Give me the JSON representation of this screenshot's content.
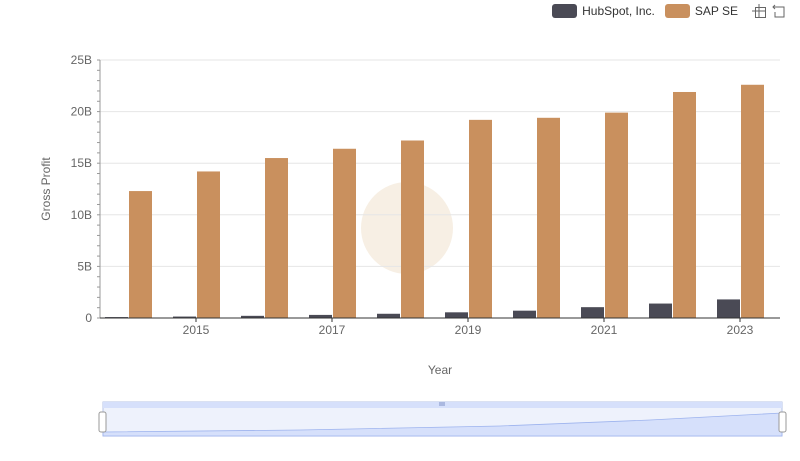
{
  "colors": {
    "hubspot": "#4a4a55",
    "sap": "#c9905e",
    "grid": "#e6e6e6",
    "axis": "#666666",
    "slider_fill": "#d6e0fb",
    "slider_border": "#b6c3e6"
  },
  "toolbar": {
    "icons": [
      "zoom-icon",
      "restore-icon"
    ]
  },
  "chart_data": {
    "type": "bar",
    "xlabel": "Year",
    "ylabel": "Gross Profit",
    "ylim": [
      0,
      25000000000
    ],
    "y_ticks": [
      "0",
      "5B",
      "10B",
      "15B",
      "20B",
      "25B"
    ],
    "x_ticks": [
      "2015",
      "2017",
      "2019",
      "2021",
      "2023"
    ],
    "categories": [
      "2014",
      "2015",
      "2016",
      "2017",
      "2018",
      "2019",
      "2020",
      "2021",
      "2022",
      "2023"
    ],
    "series": [
      {
        "name": "HubSpot, Inc.",
        "values": [
          90000000.0,
          140000000.0,
          210000000.0,
          300000000.0,
          410000000.0,
          550000000.0,
          710000000.0,
          1050000000.0,
          1400000000.0,
          1800000000.0
        ]
      },
      {
        "name": "SAP SE",
        "values": [
          12300000000.0,
          14200000000.0,
          15500000000.0,
          16400000000.0,
          17200000000.0,
          19200000000.0,
          19400000000.0,
          19900000000.0,
          21900000000.0,
          22600000000.0
        ]
      }
    ],
    "legend_position": "top-right",
    "grid": true
  }
}
